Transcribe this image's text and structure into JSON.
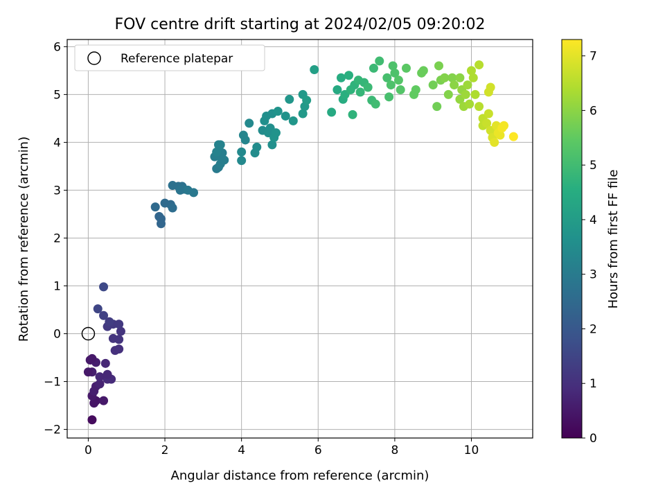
{
  "chart_data": {
    "type": "scatter",
    "title": "FOV centre drift starting at 2024/02/05 09:20:02",
    "xlabel": "Angular distance from reference (arcmin)",
    "ylabel": "Rotation from reference (arcmin)",
    "xlim": [
      -0.55,
      11.6
    ],
    "ylim": [
      -2.18,
      6.15
    ],
    "xticks": [
      0,
      2,
      4,
      6,
      8,
      10
    ],
    "yticks": [
      -2,
      -1,
      0,
      1,
      2,
      3,
      4,
      5,
      6
    ],
    "grid": true,
    "legend": {
      "placement": "top-left",
      "entries": [
        "Reference platepar"
      ]
    },
    "reference_point": {
      "x": 0,
      "y": 0
    },
    "colorbar": {
      "label": "Hours from first FF file",
      "colormap": "viridis",
      "range": [
        0,
        7.3
      ],
      "ticks": [
        0,
        1,
        2,
        3,
        4,
        5,
        6,
        7
      ]
    },
    "points": [
      [
        0.1,
        -1.8,
        0.2
      ],
      [
        0.2,
        -1.4,
        0.4
      ],
      [
        0.15,
        -1.45,
        0.4
      ],
      [
        0.4,
        -1.4,
        0.5
      ],
      [
        0.1,
        -1.3,
        0.5
      ],
      [
        0.2,
        -1.1,
        0.6
      ],
      [
        0.15,
        -1.2,
        0.6
      ],
      [
        0.3,
        -1.05,
        0.7
      ],
      [
        0.5,
        -0.95,
        0.9
      ],
      [
        0.6,
        -0.95,
        0.9
      ],
      [
        0.3,
        -0.9,
        0.8
      ],
      [
        0.1,
        -0.8,
        0.6
      ],
      [
        0.0,
        -0.8,
        0.5
      ],
      [
        0.5,
        -0.85,
        0.8
      ],
      [
        0.45,
        -0.62,
        0.8
      ],
      [
        0.05,
        -0.55,
        0.5
      ],
      [
        0.2,
        -0.6,
        0.6
      ],
      [
        0.1,
        -0.52,
        0.5
      ],
      [
        0.7,
        -0.35,
        1.0
      ],
      [
        0.8,
        -0.32,
        1.0
      ],
      [
        0.65,
        -0.1,
        1.1
      ],
      [
        0.8,
        -0.12,
        1.1
      ],
      [
        0.85,
        0.05,
        1.1
      ],
      [
        0.5,
        0.15,
        1.2
      ],
      [
        0.65,
        0.2,
        1.2
      ],
      [
        0.8,
        0.2,
        1.2
      ],
      [
        0.55,
        0.25,
        1.3
      ],
      [
        0.4,
        0.38,
        1.4
      ],
      [
        0.25,
        0.52,
        1.5
      ],
      [
        0.4,
        0.98,
        1.6
      ],
      [
        1.9,
        2.3,
        2.4
      ],
      [
        1.9,
        2.4,
        2.4
      ],
      [
        1.85,
        2.45,
        2.4
      ],
      [
        1.75,
        2.65,
        2.5
      ],
      [
        2.0,
        2.73,
        2.5
      ],
      [
        2.15,
        2.7,
        2.5
      ],
      [
        2.2,
        2.63,
        2.6
      ],
      [
        2.2,
        3.1,
        2.7
      ],
      [
        2.35,
        3.08,
        2.7
      ],
      [
        2.45,
        3.08,
        2.7
      ],
      [
        2.5,
        3.02,
        2.8
      ],
      [
        2.4,
        3.0,
        2.8
      ],
      [
        2.6,
        3.0,
        2.9
      ],
      [
        2.75,
        2.95,
        2.9
      ],
      [
        3.35,
        3.45,
        3.0
      ],
      [
        3.4,
        3.48,
        3.0
      ],
      [
        3.45,
        3.55,
        3.1
      ],
      [
        3.55,
        3.63,
        3.1
      ],
      [
        3.45,
        3.7,
        3.1
      ],
      [
        3.3,
        3.7,
        3.1
      ],
      [
        3.5,
        3.78,
        3.1
      ],
      [
        3.35,
        3.8,
        3.2
      ],
      [
        3.4,
        3.95,
        3.2
      ],
      [
        3.45,
        3.95,
        3.2
      ],
      [
        4.0,
        3.62,
        3.4
      ],
      [
        4.0,
        3.8,
        3.4
      ],
      [
        4.05,
        4.15,
        3.3
      ],
      [
        4.1,
        4.05,
        3.3
      ],
      [
        4.2,
        4.4,
        3.4
      ],
      [
        4.35,
        3.78,
        3.5
      ],
      [
        4.4,
        3.9,
        3.5
      ],
      [
        4.55,
        4.25,
        3.5
      ],
      [
        4.6,
        4.45,
        3.6
      ],
      [
        4.65,
        4.55,
        3.6
      ],
      [
        4.7,
        4.2,
        3.6
      ],
      [
        4.75,
        4.3,
        3.6
      ],
      [
        4.8,
        4.6,
        3.6
      ],
      [
        4.8,
        3.95,
        3.6
      ],
      [
        4.85,
        4.1,
        3.7
      ],
      [
        4.9,
        4.2,
        3.7
      ],
      [
        4.95,
        4.65,
        3.7
      ],
      [
        5.15,
        4.55,
        3.7
      ],
      [
        5.25,
        4.9,
        3.8
      ],
      [
        5.35,
        4.45,
        3.8
      ],
      [
        5.6,
        4.6,
        3.9
      ],
      [
        5.6,
        5.0,
        3.9
      ],
      [
        5.65,
        4.75,
        3.9
      ],
      [
        5.7,
        4.88,
        4.0
      ],
      [
        5.9,
        5.52,
        4.1
      ],
      [
        6.35,
        4.63,
        4.4
      ],
      [
        6.5,
        5.1,
        4.4
      ],
      [
        6.6,
        5.35,
        4.5
      ],
      [
        6.65,
        4.9,
        4.5
      ],
      [
        6.7,
        5.0,
        4.6
      ],
      [
        6.8,
        5.4,
        4.6
      ],
      [
        6.85,
        5.1,
        4.7
      ],
      [
        6.9,
        4.58,
        4.7
      ],
      [
        6.95,
        5.2,
        4.7
      ],
      [
        7.05,
        5.3,
        4.8
      ],
      [
        7.1,
        5.05,
        4.8
      ],
      [
        7.2,
        5.25,
        4.8
      ],
      [
        7.3,
        5.15,
        4.9
      ],
      [
        7.4,
        4.88,
        4.9
      ],
      [
        7.45,
        5.55,
        4.9
      ],
      [
        7.5,
        4.8,
        5.0
      ],
      [
        7.6,
        5.7,
        5.0
      ],
      [
        7.8,
        5.35,
        5.1
      ],
      [
        7.85,
        4.95,
        5.1
      ],
      [
        7.9,
        5.2,
        5.2
      ],
      [
        7.95,
        5.6,
        5.2
      ],
      [
        8.0,
        5.45,
        5.2
      ],
      [
        8.1,
        5.3,
        5.3
      ],
      [
        8.15,
        5.1,
        5.3
      ],
      [
        8.3,
        5.55,
        5.4
      ],
      [
        8.5,
        5.0,
        5.5
      ],
      [
        8.55,
        5.1,
        5.5
      ],
      [
        8.7,
        5.45,
        5.6
      ],
      [
        8.75,
        5.5,
        5.6
      ],
      [
        9.0,
        5.2,
        5.7
      ],
      [
        9.1,
        4.75,
        5.7
      ],
      [
        9.15,
        5.6,
        5.8
      ],
      [
        9.2,
        5.3,
        5.8
      ],
      [
        9.3,
        5.35,
        5.9
      ],
      [
        9.4,
        5.0,
        5.9
      ],
      [
        9.5,
        5.35,
        5.9
      ],
      [
        9.55,
        5.2,
        6.0
      ],
      [
        9.7,
        5.35,
        6.0
      ],
      [
        9.7,
        4.9,
        6.1
      ],
      [
        9.75,
        5.1,
        6.1
      ],
      [
        9.8,
        4.75,
        6.2
      ],
      [
        9.85,
        5.0,
        6.2
      ],
      [
        9.9,
        5.2,
        6.2
      ],
      [
        9.95,
        4.8,
        6.3
      ],
      [
        10.0,
        5.5,
        6.4
      ],
      [
        10.05,
        5.35,
        6.4
      ],
      [
        10.1,
        5.0,
        6.4
      ],
      [
        10.2,
        5.62,
        6.5
      ],
      [
        10.2,
        4.75,
        6.5
      ],
      [
        10.3,
        4.5,
        6.6
      ],
      [
        10.3,
        4.35,
        6.6
      ],
      [
        10.4,
        4.4,
        6.7
      ],
      [
        10.45,
        4.6,
        6.7
      ],
      [
        10.45,
        5.05,
        6.8
      ],
      [
        10.5,
        5.15,
        6.8
      ],
      [
        10.5,
        4.25,
        6.8
      ],
      [
        10.55,
        4.1,
        6.9
      ],
      [
        10.6,
        4.0,
        7.0
      ],
      [
        10.65,
        4.35,
        7.0
      ],
      [
        10.7,
        4.2,
        7.1
      ],
      [
        10.75,
        4.15,
        7.1
      ],
      [
        10.8,
        4.3,
        7.2
      ],
      [
        10.85,
        4.35,
        7.2
      ],
      [
        11.1,
        4.12,
        7.3
      ]
    ]
  }
}
